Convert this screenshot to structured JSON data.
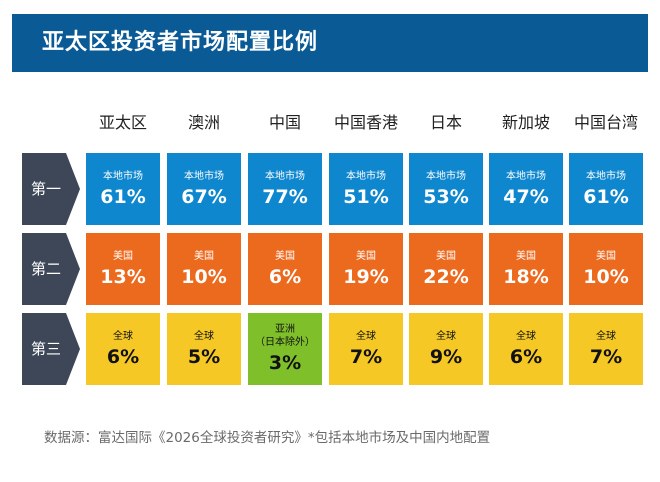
{
  "title": "亚太区投资者市场配置比例",
  "source": "数据源：富达国际《2026全球投资者研究》*包括本地市场及中国内地配置",
  "colors": {
    "banner": "#0a5a96",
    "tab": "#3d4757",
    "rank_1": "#0e87cf",
    "rank_2": "#ec6a1e",
    "rank_3": "#f6c825",
    "rank_3_highlight": "#7fbf2a"
  },
  "chart_data": {
    "type": "table",
    "title": "亚太区投资者市场配置比例",
    "columns": [
      "亚太区",
      "澳洲",
      "中国",
      "中国香港",
      "日本",
      "新加坡",
      "中国台湾"
    ],
    "rows": [
      {
        "rank": "第一",
        "cells": [
          {
            "label": "本地市场",
            "value": "61%"
          },
          {
            "label": "本地市场",
            "value": "67%"
          },
          {
            "label": "本地市场",
            "value": "77%"
          },
          {
            "label": "本地市场",
            "value": "51%"
          },
          {
            "label": "本地市场",
            "value": "53%"
          },
          {
            "label": "本地市场",
            "value": "47%"
          },
          {
            "label": "本地市场",
            "value": "61%"
          }
        ]
      },
      {
        "rank": "第二",
        "cells": [
          {
            "label": "美国",
            "value": "13%"
          },
          {
            "label": "美国",
            "value": "10%"
          },
          {
            "label": "美国",
            "value": "6%"
          },
          {
            "label": "美国",
            "value": "19%"
          },
          {
            "label": "美国",
            "value": "22%"
          },
          {
            "label": "美国",
            "value": "18%"
          },
          {
            "label": "美国",
            "value": "10%"
          }
        ]
      },
      {
        "rank": "第三",
        "cells": [
          {
            "label": "全球",
            "value": "6%"
          },
          {
            "label": "全球",
            "value": "5%"
          },
          {
            "label": "亚洲\n（日本除外）",
            "value": "3%",
            "highlight": true
          },
          {
            "label": "全球",
            "value": "7%"
          },
          {
            "label": "全球",
            "value": "9%"
          },
          {
            "label": "全球",
            "value": "6%"
          },
          {
            "label": "全球",
            "value": "7%"
          }
        ]
      }
    ]
  }
}
